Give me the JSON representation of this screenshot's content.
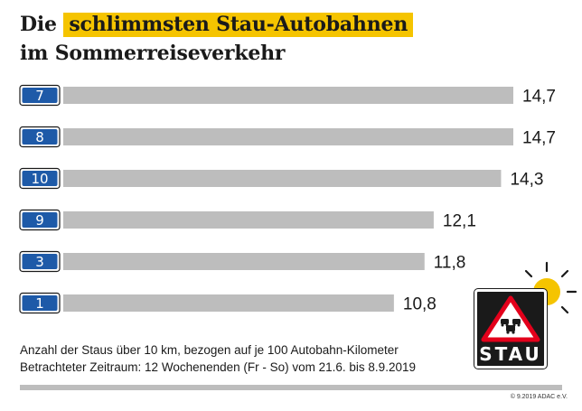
{
  "title": {
    "line1_prefix": "Die",
    "line1_highlight": "schlimmsten Stau-Autobahnen",
    "line2": "im Sommerreiseverkehr"
  },
  "chart_data": {
    "type": "bar",
    "orientation": "horizontal",
    "categories": [
      "7",
      "8",
      "10",
      "9",
      "3",
      "1"
    ],
    "values": [
      14.7,
      14.7,
      14.3,
      12.1,
      11.8,
      10.8
    ],
    "value_labels": [
      "14,7",
      "14,7",
      "14,3",
      "12,1",
      "11,8",
      "10,8"
    ],
    "category_style": "motorway-shield",
    "bar_color": "#bdbdbd",
    "shield_color": "#1e5aa8",
    "highlight_color": "#f5c400",
    "xlim": [
      0,
      14.7
    ],
    "grid": false,
    "legend": "none"
  },
  "footnote": {
    "line1": "Anzahl der Staus über 10 km, bezogen auf je 100 Autobahn-Kilometer",
    "line2": "Betrachteter Zeitraum: 12 Wochenenden (Fr - So) vom 21.6. bis 8.9.2019"
  },
  "stau_sign": {
    "label": "STAU",
    "icon": "traffic-jam-warning-sign-icon"
  },
  "sun_icon": "sun-icon",
  "copyright": "© 9.2019 ADAC e.V."
}
